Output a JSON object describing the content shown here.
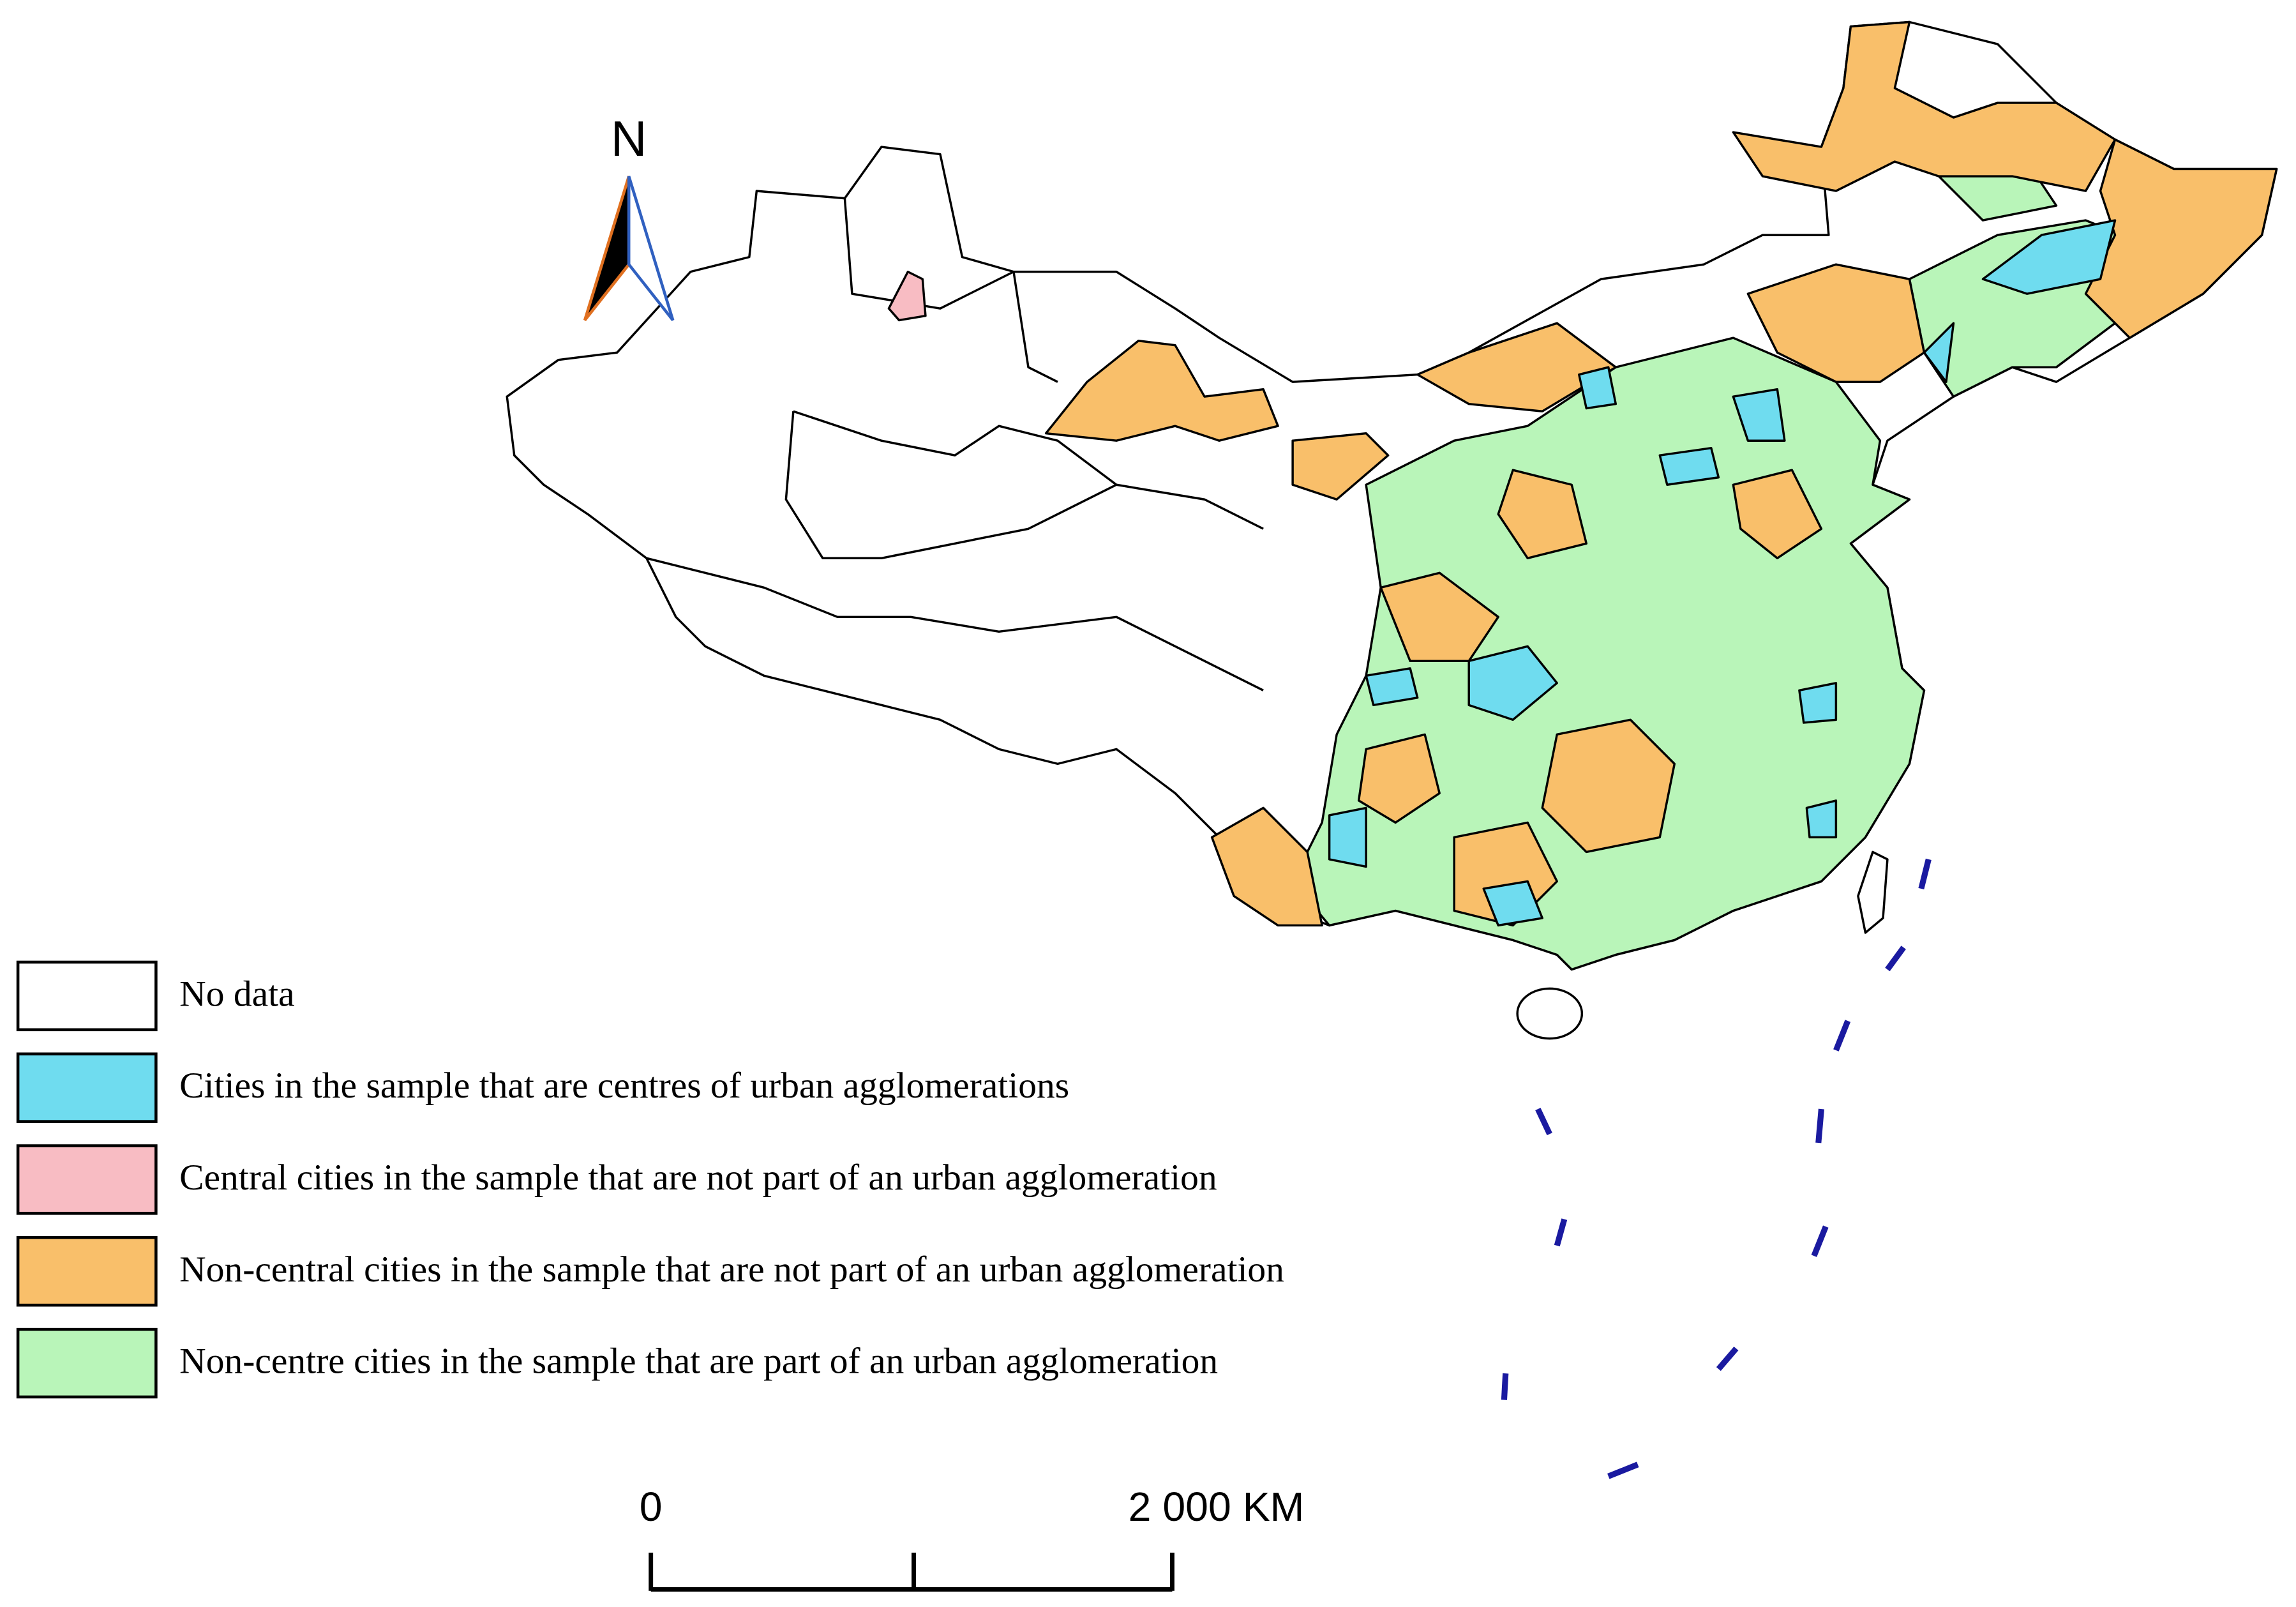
{
  "north_label": "N",
  "legend": [
    {
      "label": "No data",
      "color": "#ffffff"
    },
    {
      "label": "Cities in the sample that are centres of urban agglomerations",
      "color": "#6fdcef"
    },
    {
      "label": "Central cities in the sample that are not part of an urban agglomeration",
      "color": "#f8bcc3"
    },
    {
      "label": "Non-central cities in the sample that are not part of an urban agglomeration",
      "color": "#f9bf6a"
    },
    {
      "label": "Non-centre cities in the sample that are part of an urban agglomeration",
      "color": "#b9f5b9"
    }
  ],
  "scale_bar": {
    "labels": [
      "0",
      "2 000 KM"
    ]
  }
}
